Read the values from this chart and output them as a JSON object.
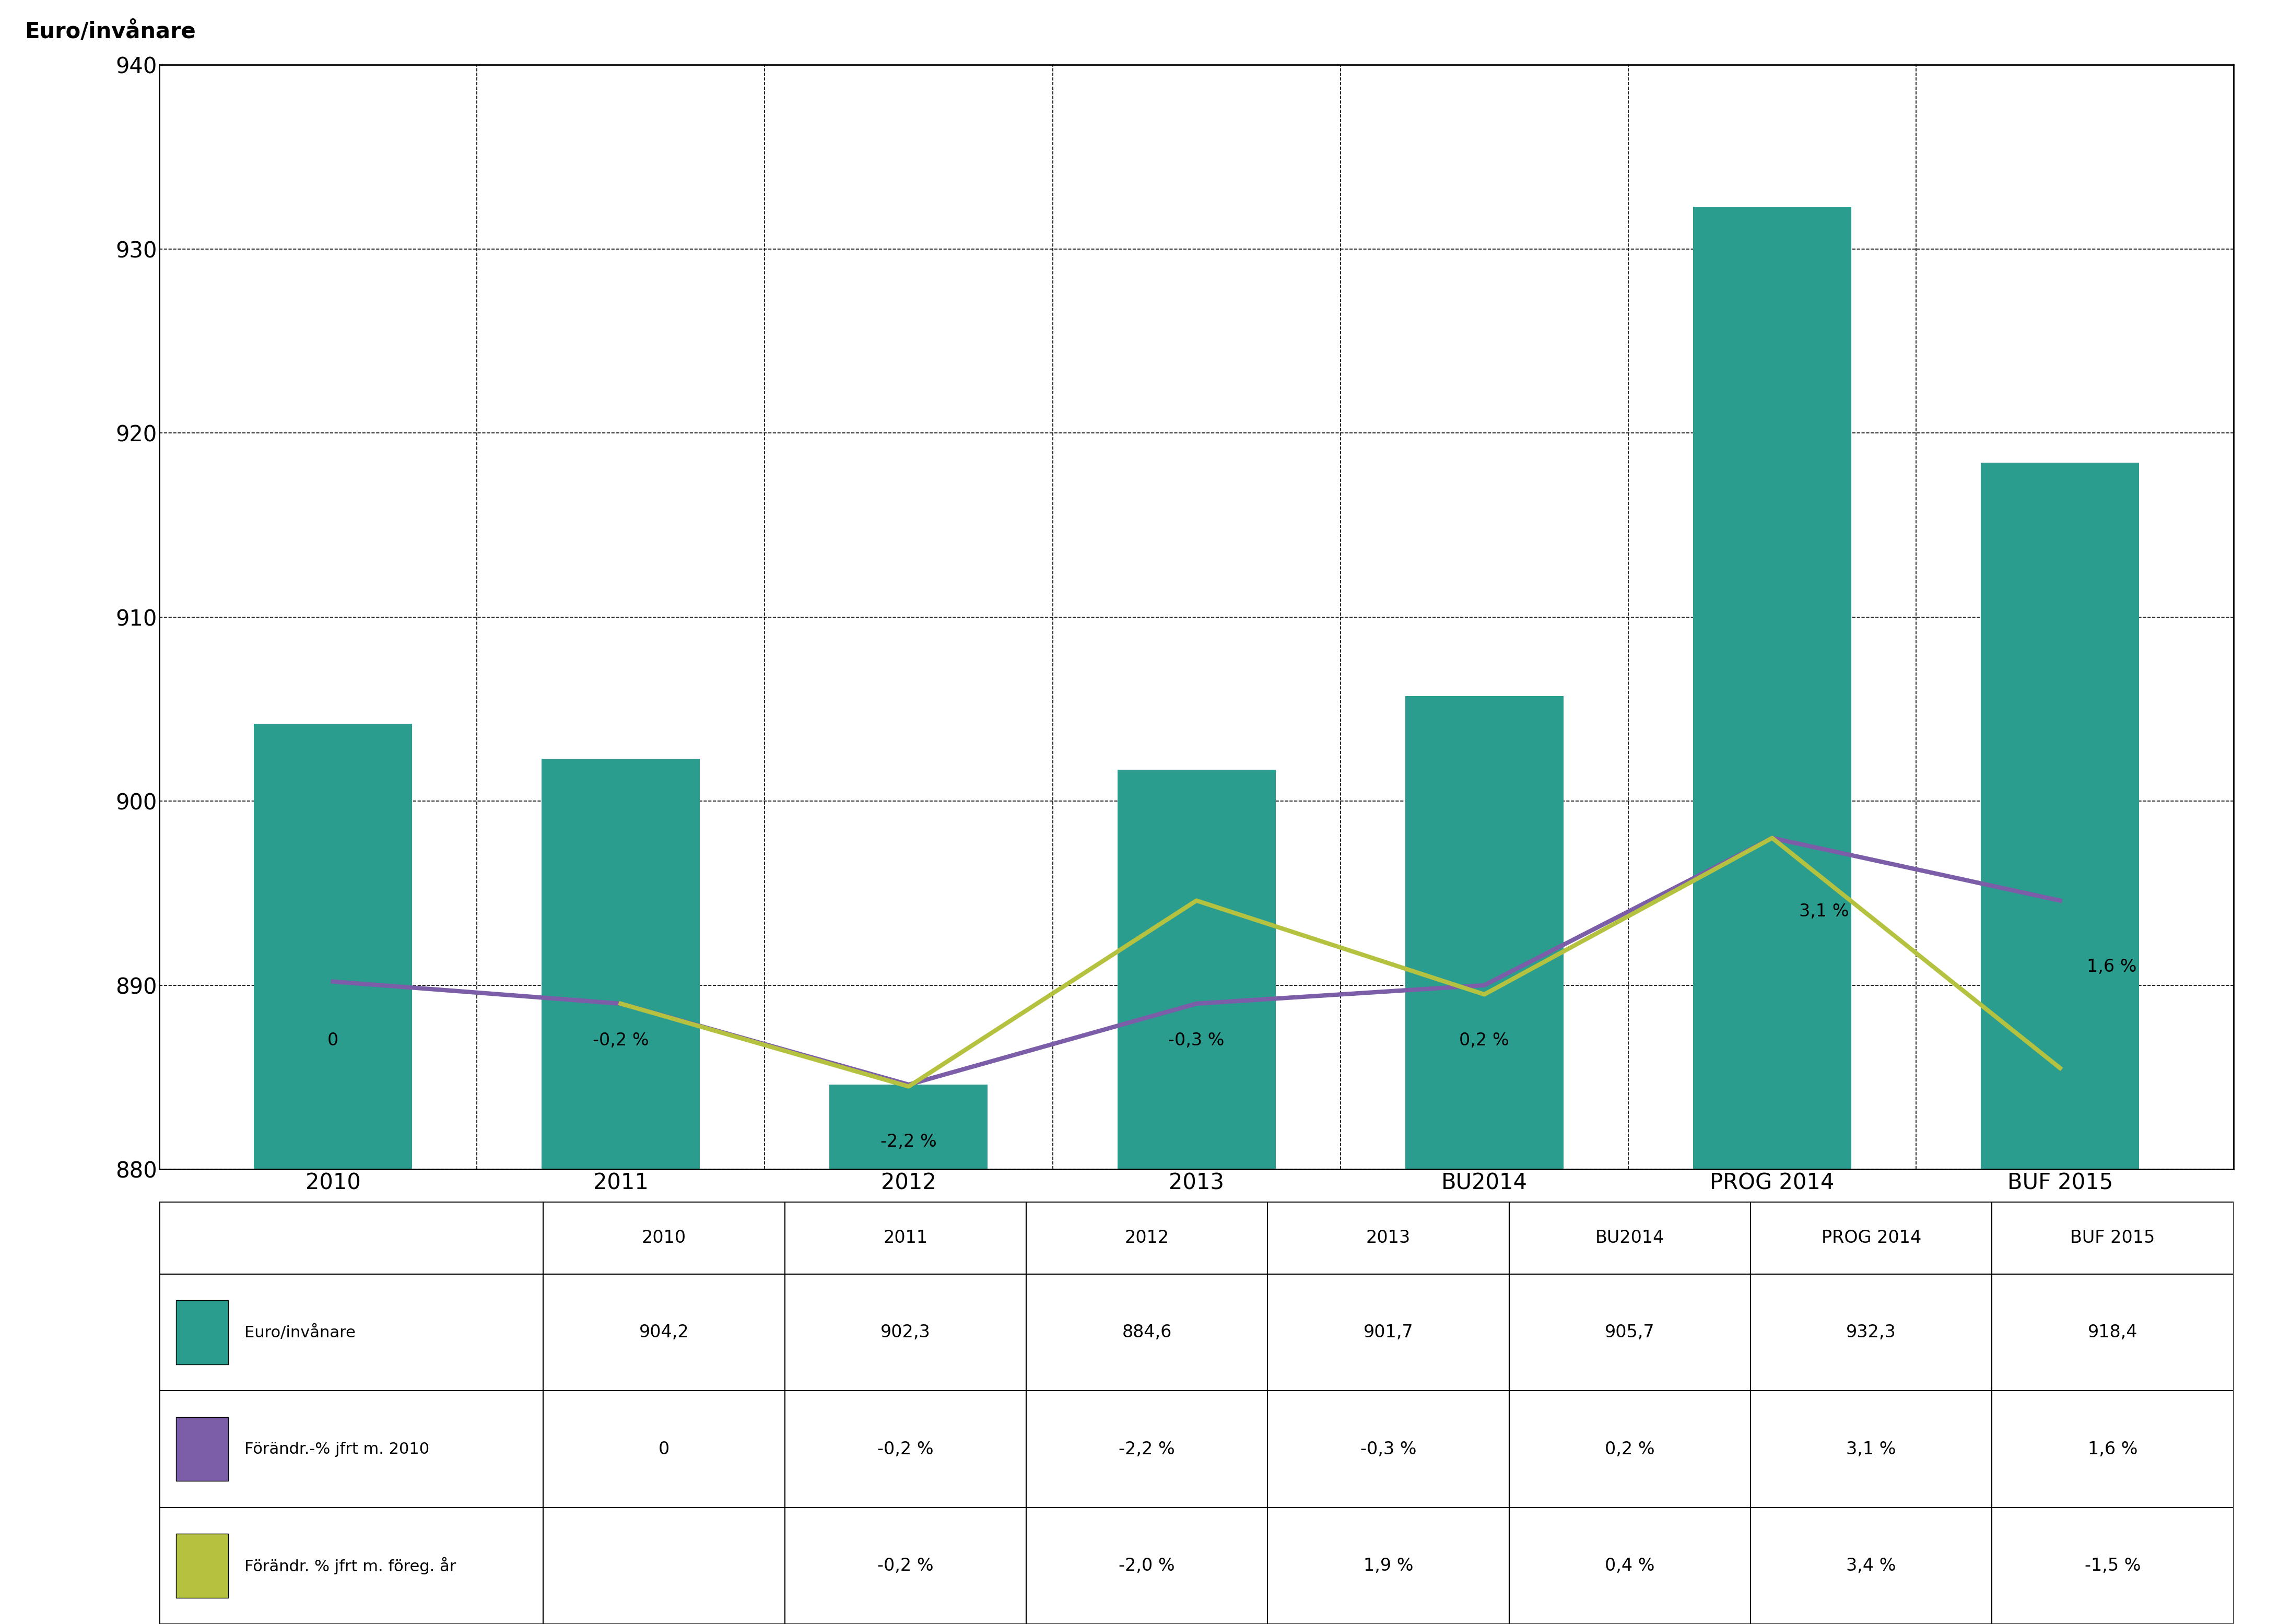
{
  "categories": [
    "2010",
    "2011",
    "2012",
    "2013",
    "BU2014",
    "PROG 2014",
    "BUF 2015"
  ],
  "bar_values": [
    904.2,
    902.3,
    884.6,
    901.7,
    905.7,
    932.3,
    918.4
  ],
  "bar_color": "#2a9d8f",
  "line1_values": [
    890.2,
    889.0,
    884.6,
    889.0,
    890.0,
    898.0,
    894.6
  ],
  "line1_color": "#7b5ea7",
  "line1_label": "Förändr.-% jfrt m. 2010",
  "line1_annotations": [
    "0",
    "-0,2 %",
    "-2,2 %",
    "-0,3 %",
    "0,2 %",
    "3,1 %",
    "1,6 %"
  ],
  "line1_ann_offsets_x": [
    0,
    0,
    0,
    0,
    0,
    0.15,
    0.15
  ],
  "line1_ann_offsets_y": [
    0.5,
    0.5,
    -0.8,
    0.5,
    0.5,
    0.5,
    0.5
  ],
  "line2_values": [
    null,
    889.0,
    884.5,
    894.6,
    889.5,
    898.0,
    885.5
  ],
  "line2_color": "#b5c240",
  "line2_label": "Förändr. % jfrt m. föreg. år",
  "ylim": [
    880,
    940
  ],
  "yticks": [
    880,
    890,
    900,
    910,
    920,
    930,
    940
  ],
  "ylabel": "Euro/invånare",
  "bar_width": 0.55,
  "legend_labels": [
    "Euro/invånare",
    "Förändr.-% jfrt m. 2010",
    "Förändr. % jfrt m. föreg. år"
  ],
  "legend_colors": [
    "#2a9d8f",
    "#7b5ea7",
    "#b5c240"
  ],
  "table_data": {
    "rows": [
      "Euro/invånare",
      "Förändr.-% jfrt m. 2010",
      "Förändr. % jfrt m. föreg. år"
    ],
    "values": [
      [
        "904,2",
        "902,3",
        "884,6",
        "901,7",
        "905,7",
        "932,3",
        "918,4"
      ],
      [
        "0",
        "-0,2 %",
        "-2,2 %",
        "-0,3 %",
        "0,2 %",
        "3,1 %",
        "1,6 %"
      ],
      [
        "",
        "-0,2 %",
        "-2,0 %",
        "1,9 %",
        "0,4 %",
        "3,4 %",
        "-1,5 %"
      ]
    ]
  }
}
